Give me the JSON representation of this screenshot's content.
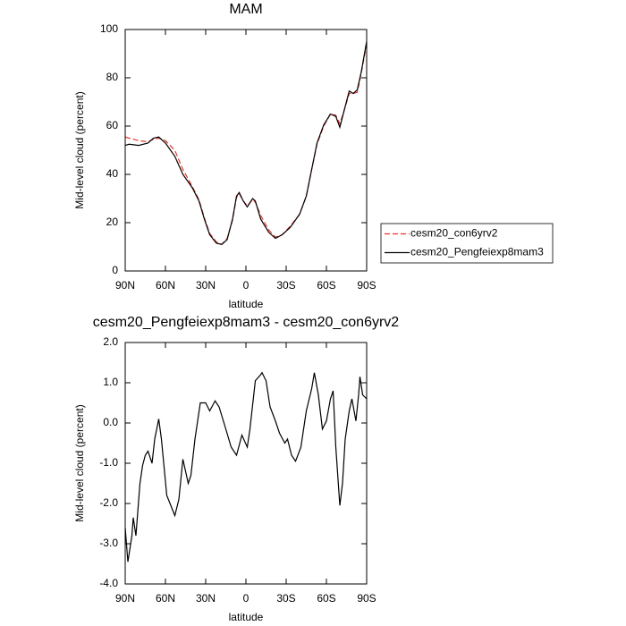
{
  "chart_data": [
    {
      "type": "line",
      "title": "MAM",
      "xlabel": "latitude",
      "ylabel": "Mid-level cloud (percent)",
      "x": [
        90,
        87,
        80,
        73,
        69,
        65,
        60,
        53,
        47,
        40,
        35,
        31,
        27,
        22,
        18,
        14,
        10,
        7,
        5,
        2,
        -1,
        -5,
        -7,
        -11,
        -17,
        -22,
        -27,
        -33,
        -40,
        -45,
        -49,
        -53,
        -58,
        -63,
        -67,
        -70,
        -73,
        -77,
        -80,
        -83,
        -86,
        -89,
        -90
      ],
      "series": [
        {
          "name": "cesm20_con6yrv2",
          "color": "#e8332a",
          "line_style": "dashed",
          "values": [
            55.5,
            55,
            54,
            53.5,
            54.5,
            55,
            54,
            50,
            42,
            35,
            29.5,
            22,
            15.5,
            12,
            11,
            13.5,
            21,
            30.5,
            32,
            29,
            27,
            29.5,
            28.5,
            23,
            17,
            14,
            15,
            18.5,
            23.5,
            31,
            42,
            52.5,
            60,
            65,
            64.5,
            61,
            66,
            73.5,
            73.5,
            74,
            82,
            91,
            95
          ]
        },
        {
          "name": "cesm20_Pengfeiexp8mam3",
          "color": "#000000",
          "line_style": "solid",
          "values": [
            52,
            52.5,
            52,
            53,
            55,
            55.5,
            53,
            47.5,
            40,
            34.5,
            29,
            21.5,
            15,
            11.5,
            11,
            13,
            21.5,
            31,
            32.5,
            29,
            26.5,
            30,
            29,
            21.5,
            16,
            13.5,
            15,
            18,
            23.5,
            31,
            42,
            53,
            60.5,
            65,
            64,
            59.5,
            66,
            74.5,
            73.5,
            75,
            82.5,
            92,
            95
          ]
        }
      ],
      "xlim": [
        90,
        -90
      ],
      "xticks": [
        {
          "value": 90,
          "label": "90N"
        },
        {
          "value": 60,
          "label": "60N"
        },
        {
          "value": 30,
          "label": "30N"
        },
        0,
        {
          "value": -30,
          "label": "30S"
        },
        {
          "value": -60,
          "label": "60S"
        },
        {
          "value": -90,
          "label": "90S"
        }
      ],
      "ylim": [
        0,
        100
      ],
      "yticks": [
        0,
        20,
        40,
        60,
        80,
        100
      ],
      "legend": "right"
    },
    {
      "type": "line",
      "title": "cesm20_Pengfeiexp8mam3 - cesm20_con6yrv2",
      "xlabel": "latitude",
      "ylabel": "Mid-level cloud (percent)",
      "x": [
        90,
        88,
        85,
        84,
        82,
        79,
        77,
        75,
        73,
        70,
        68,
        65,
        63,
        59,
        53,
        50,
        47,
        43,
        41,
        38,
        34,
        30,
        27,
        23,
        20,
        15,
        11,
        7,
        3,
        -1,
        -3,
        -7,
        -11,
        -12,
        -15,
        -18,
        -22,
        -25,
        -29,
        -31,
        -34,
        -37,
        -41,
        -45,
        -49,
        -51,
        -54,
        -57,
        -60,
        -63,
        -65,
        -67,
        -70,
        -72,
        -74,
        -77,
        -79,
        -82,
        -84,
        -85,
        -87,
        -90
      ],
      "values": [
        -2.6,
        -3.45,
        -2.8,
        -2.35,
        -2.8,
        -1.5,
        -1.05,
        -0.8,
        -0.7,
        -1.0,
        -0.4,
        0.1,
        -0.4,
        -1.8,
        -2.3,
        -1.9,
        -0.9,
        -1.5,
        -1.3,
        -0.4,
        0.5,
        0.5,
        0.3,
        0.55,
        0.4,
        -0.15,
        -0.6,
        -0.8,
        -0.3,
        -0.6,
        -0.15,
        1.05,
        1.2,
        1.25,
        1.05,
        0.4,
        0.05,
        -0.25,
        -0.5,
        -0.4,
        -0.8,
        -0.95,
        -0.6,
        0.3,
        0.85,
        1.25,
        0.7,
        -0.15,
        0.05,
        0.6,
        0.8,
        -0.6,
        -2.05,
        -1.5,
        -0.4,
        0.3,
        0.6,
        0.05,
        0.7,
        1.15,
        0.7,
        0.6
      ],
      "color": "#000000",
      "xlim": [
        90,
        -90
      ],
      "xticks": [
        {
          "value": 90,
          "label": "90N"
        },
        {
          "value": 60,
          "label": "60N"
        },
        {
          "value": 30,
          "label": "30N"
        },
        0,
        {
          "value": -30,
          "label": "30S"
        },
        {
          "value": -60,
          "label": "60S"
        },
        {
          "value": -90,
          "label": "90S"
        }
      ],
      "ylim": [
        -4,
        2
      ],
      "yticks": [
        {
          "value": -4,
          "label": "-4.0"
        },
        {
          "value": -3,
          "label": "-3.0"
        },
        {
          "value": -2,
          "label": "-2.0"
        },
        {
          "value": -1,
          "label": "-1.0"
        },
        {
          "value": 0,
          "label": "0.0"
        },
        {
          "value": 1,
          "label": "1.0"
        },
        {
          "value": 2,
          "label": "2.0"
        }
      ]
    }
  ]
}
